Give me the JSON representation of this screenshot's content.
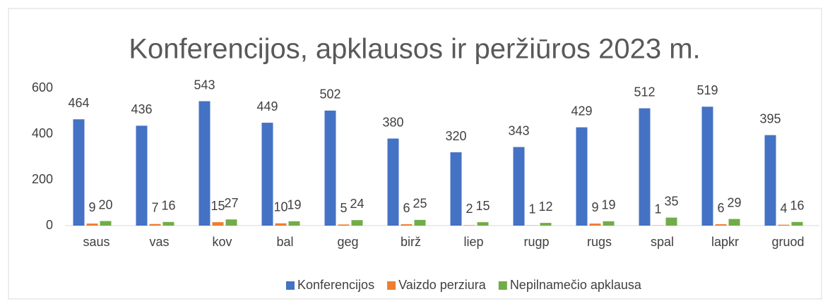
{
  "chart_data": {
    "type": "bar",
    "title": "Konferencijos, apklausos ir peržiūros 2023 m.",
    "categories": [
      "saus",
      "vas",
      "kov",
      "bal",
      "geg",
      "birž",
      "liep",
      "rugp",
      "rugs",
      "spal",
      "lapkr",
      "gruod"
    ],
    "series": [
      {
        "name": "Konferencijos",
        "color": "#4472c4",
        "values": [
          464,
          436,
          543,
          449,
          502,
          380,
          320,
          343,
          429,
          512,
          519,
          395
        ]
      },
      {
        "name": "Vaizdo perziura",
        "color": "#ed7d31",
        "values": [
          9,
          7,
          15,
          10,
          5,
          6,
          2,
          1,
          9,
          1,
          6,
          4
        ]
      },
      {
        "name": "Nepilnamečio apklausa",
        "color": "#70ad47",
        "values": [
          20,
          16,
          27,
          19,
          24,
          25,
          15,
          12,
          19,
          35,
          29,
          16
        ]
      }
    ],
    "ylim": [
      0,
      600
    ],
    "yticks": [
      0,
      200,
      400,
      600
    ],
    "grid": false,
    "legend": "bottom"
  }
}
